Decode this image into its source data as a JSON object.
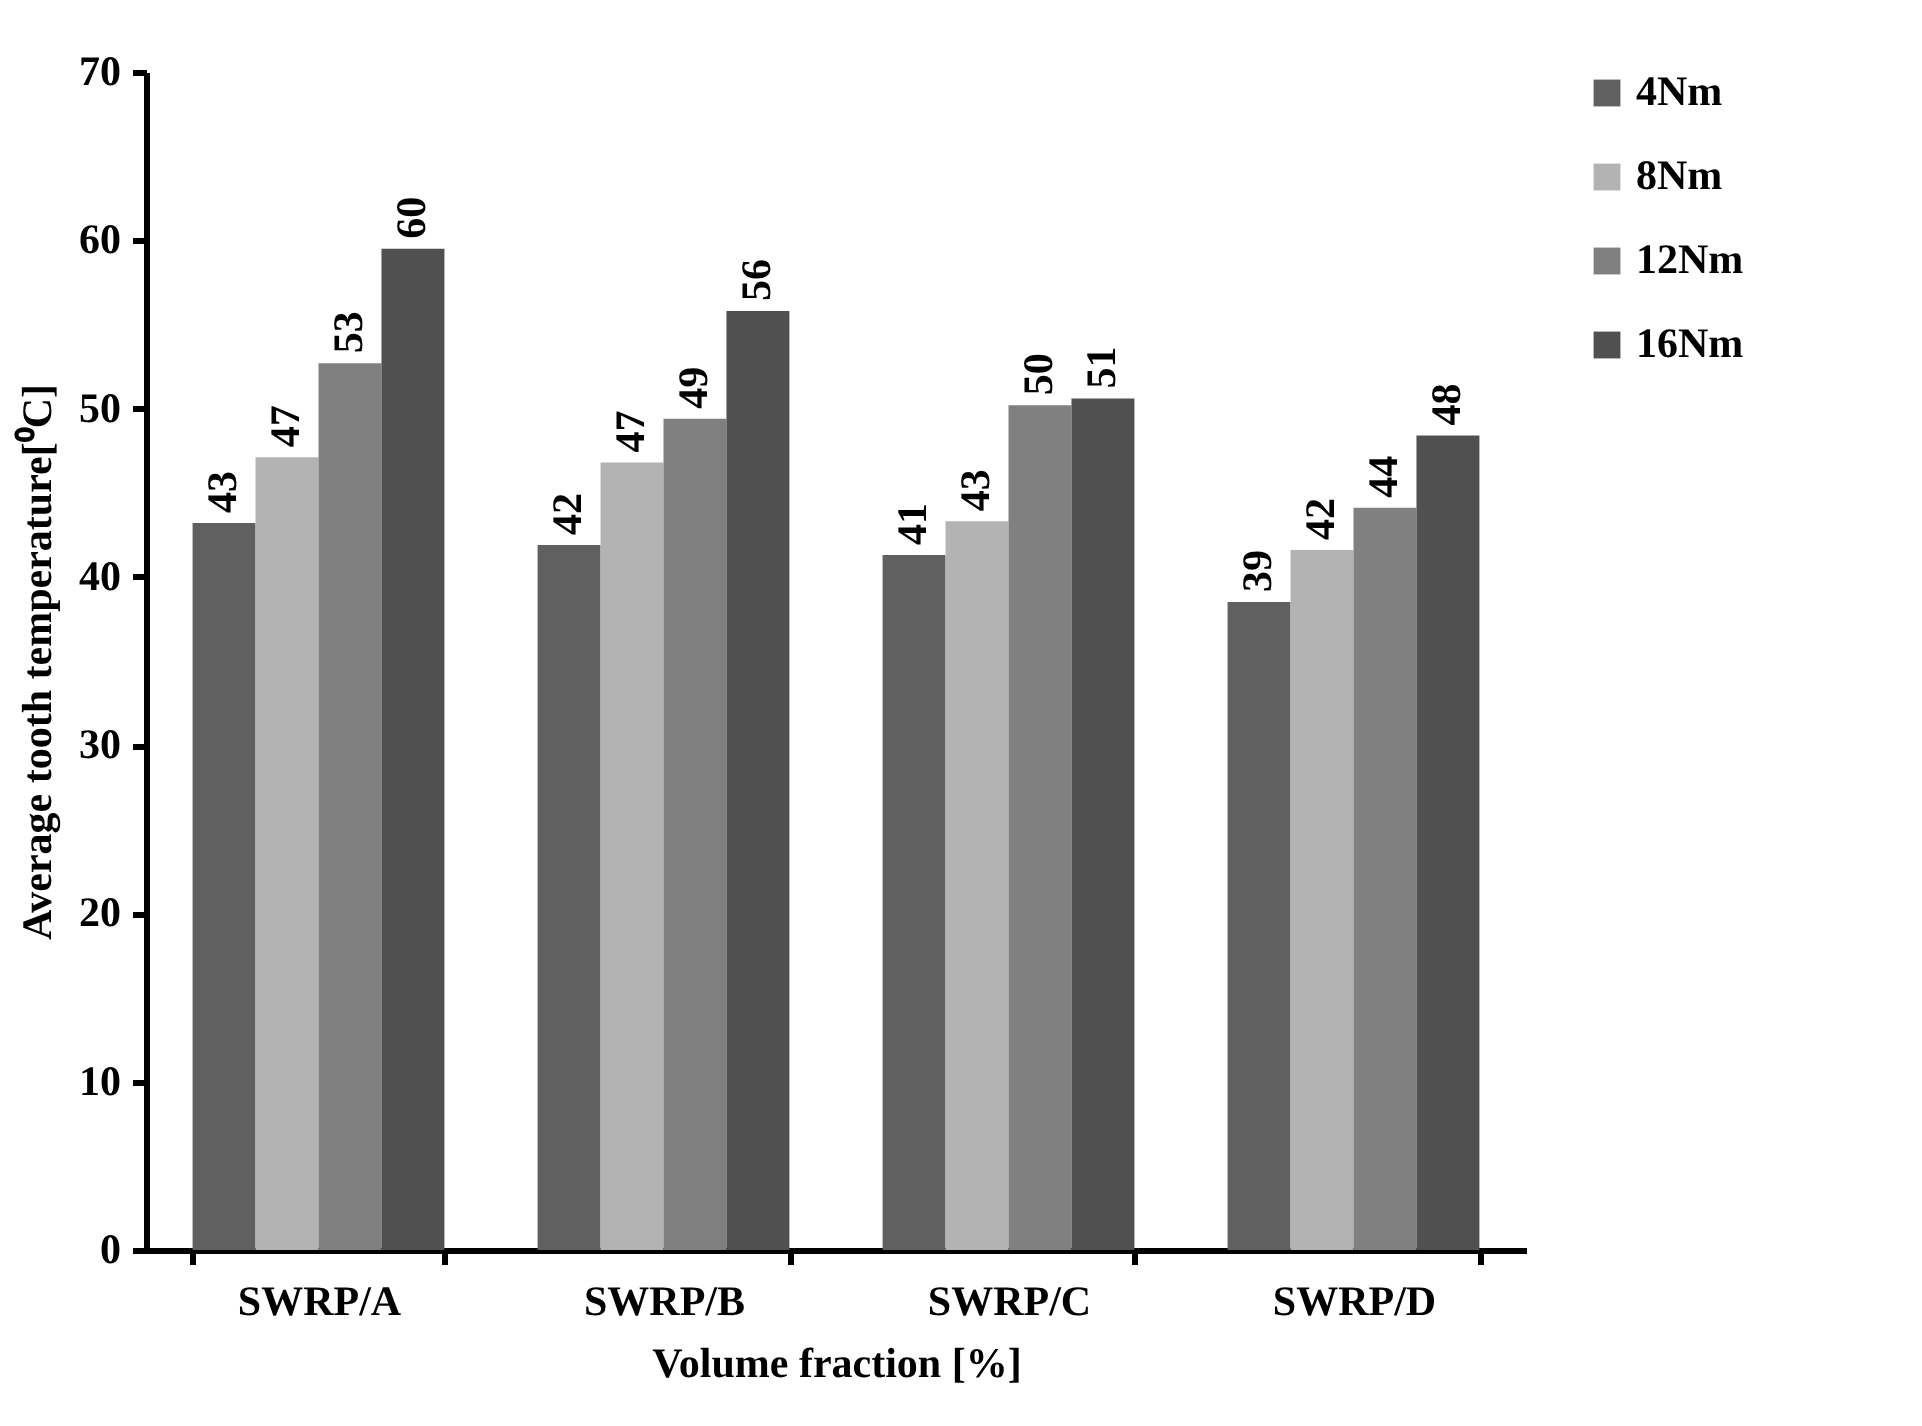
{
  "chart_data": {
    "type": "bar",
    "xlabel": "Volume fraction [%]",
    "ylabel": "Average tooth temperature[⁰C]",
    "categories": [
      "SWRP/A",
      "SWRP/B",
      "SWRP/C",
      "SWRP/D"
    ],
    "series": [
      {
        "name": "4Nm",
        "color": "#606060",
        "values": [
          43.2,
          41.9,
          41.3,
          38.5
        ],
        "value_labels": [
          "43",
          "42",
          "41",
          "39"
        ]
      },
      {
        "name": "8Nm",
        "color": "#b3b3b3",
        "values": [
          47.1,
          46.8,
          43.3,
          41.6
        ],
        "value_labels": [
          "47",
          "47",
          "43",
          "42"
        ]
      },
      {
        "name": "12Nm",
        "color": "#808080",
        "values": [
          52.7,
          49.4,
          50.2,
          44.1
        ],
        "value_labels": [
          "53",
          "49",
          "50",
          "44"
        ]
      },
      {
        "name": "16Nm",
        "color": "#505050",
        "values": [
          59.5,
          55.8,
          50.6,
          48.4
        ],
        "value_labels": [
          "60",
          "56",
          "51",
          "48"
        ]
      }
    ],
    "ylim": [
      0,
      70
    ],
    "yticks": [
      0,
      10,
      20,
      30,
      40,
      50,
      60,
      70
    ],
    "grid": false,
    "legend": "right"
  }
}
